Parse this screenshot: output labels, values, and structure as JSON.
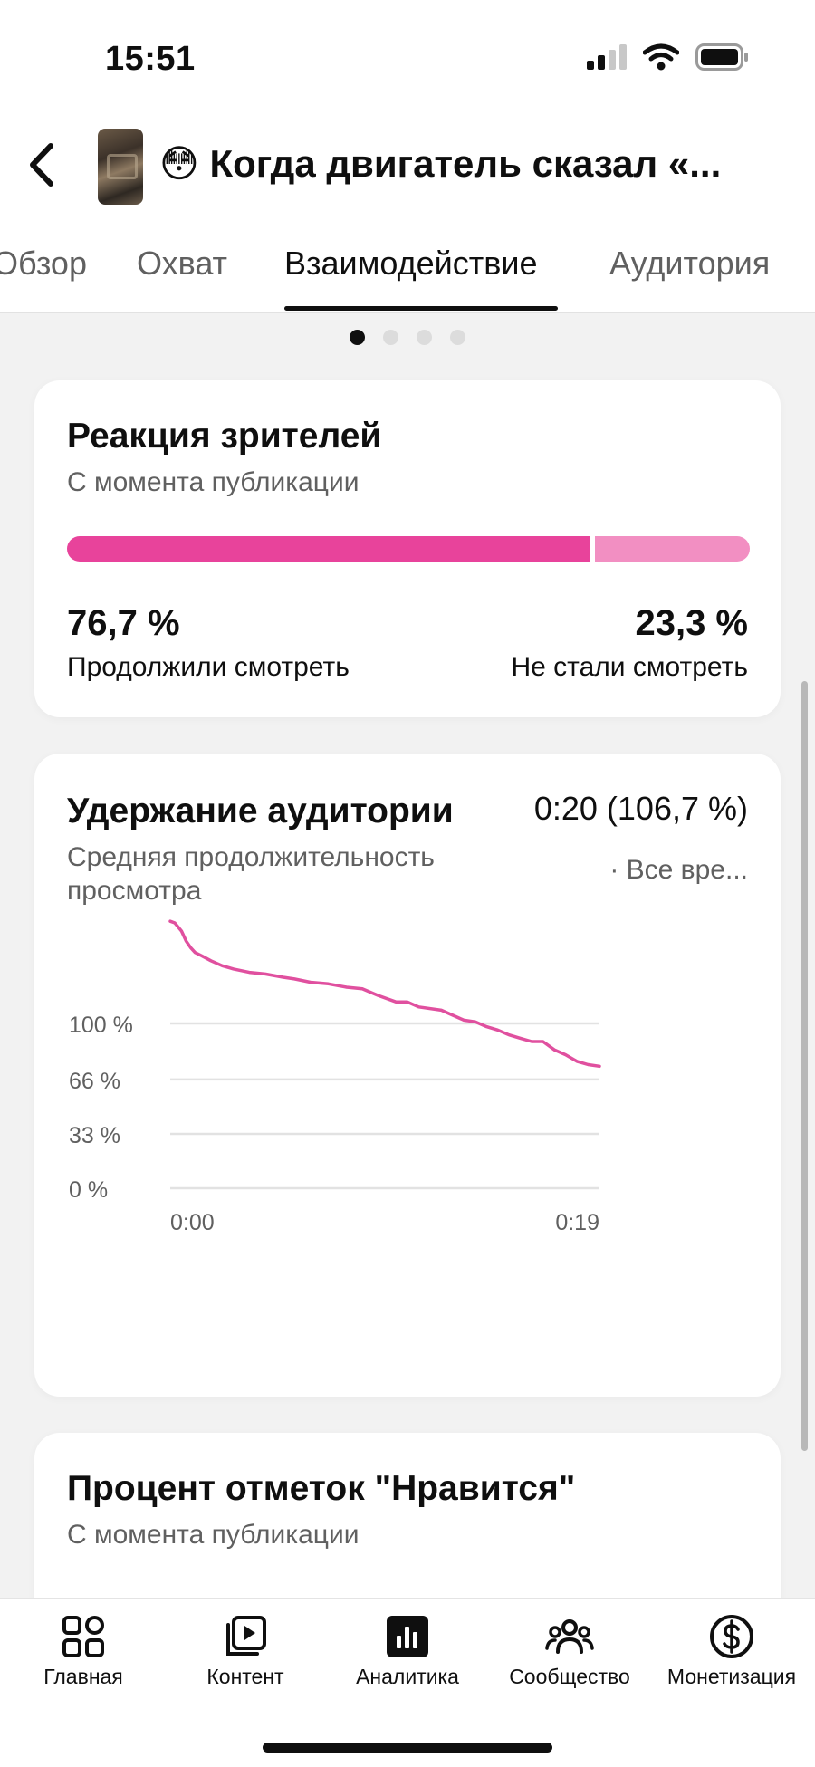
{
  "status_bar": {
    "time": "15:51"
  },
  "header": {
    "title_emoji": "😳",
    "title": "Когда двигатель сказал «..."
  },
  "tabs": [
    {
      "label": "Обзор",
      "active": false
    },
    {
      "label": "Охват",
      "active": false
    },
    {
      "label": "Взаимодействие",
      "active": true
    },
    {
      "label": "Аудитория",
      "active": false
    }
  ],
  "pager": {
    "pages": 4,
    "current": 1
  },
  "viewer_reaction": {
    "title": "Реакция зрителей",
    "subtitle": "С момента публикации",
    "continued_share": 0.767,
    "continued_pct": "76,7 %",
    "continued_label": "Продолжили смотреть",
    "stopped_pct": "23,3 %",
    "stopped_label": "Не стали смотреть",
    "colors": {
      "continued": "#e8439b",
      "stopped": "#f28fc2"
    }
  },
  "retention": {
    "title": "Удержание аудитории",
    "value": "0:20 (106,7 %)",
    "subtitle": "Средняя продолжительность просмотра",
    "period": "· Все вре..."
  },
  "chart_data": {
    "type": "line",
    "title": "Удержание аудитории",
    "x_tick_labels": [
      "0:00",
      "0:19"
    ],
    "y_tick_labels": [
      "100 %",
      "66 %",
      "33 %",
      "0 %"
    ],
    "y_ticks": [
      100,
      66,
      33,
      0
    ],
    "x_range": [
      0,
      19
    ],
    "grid": true,
    "color": "#e0509f",
    "series": [
      {
        "x": [
          0,
          0.2,
          0.5,
          0.7,
          0.9,
          1.1,
          1.4,
          1.8,
          2.3,
          2.8,
          3.5,
          4.2,
          5.0,
          5.5,
          6.2,
          7.0,
          7.8,
          8.5,
          9.2,
          10.0,
          10.5,
          11.0,
          12.0,
          12.5,
          13.0,
          13.5,
          14.0,
          14.5,
          15.0,
          15.5,
          16.0,
          16.5,
          17.0,
          17.5,
          18.0,
          18.5,
          19.0
        ],
        "y": [
          162,
          161,
          156,
          150,
          146,
          143,
          141,
          138,
          135,
          133,
          131,
          130,
          128,
          127,
          125,
          124,
          122,
          121,
          117,
          113,
          113,
          110,
          108,
          105,
          102,
          101,
          98,
          96,
          93,
          91,
          89,
          89,
          84,
          81,
          77,
          75,
          74
        ]
      }
    ]
  },
  "likes": {
    "title": "Процент отметок \"Нравится\"",
    "subtitle": "С момента публикации"
  },
  "bottom_nav": [
    {
      "label": "Главная",
      "icon": "home-grid-icon"
    },
    {
      "label": "Контент",
      "icon": "content-play-icon"
    },
    {
      "label": "Аналитика",
      "icon": "analytics-chart-icon"
    },
    {
      "label": "Сообщество",
      "icon": "community-people-icon"
    },
    {
      "label": "Монетизация",
      "icon": "dollar-coin-icon"
    }
  ]
}
